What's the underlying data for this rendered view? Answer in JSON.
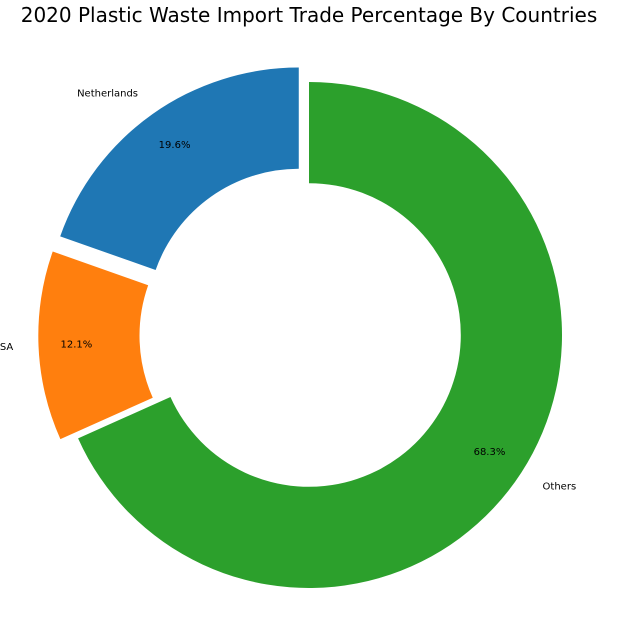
{
  "chart_data": {
    "type": "pie",
    "title": "2020 Plastic Waste Import Trade Percentage By Countries",
    "donut": true,
    "legend": "none",
    "slices": [
      {
        "label": "Netherlands",
        "value": 19.6,
        "pct_label": "19.6%",
        "color": "#1f77b4",
        "exploded": true
      },
      {
        "label": "USA",
        "value": 12.1,
        "pct_label": "12.1%",
        "color": "#ff7f0e",
        "exploded": true
      },
      {
        "label": "Others",
        "value": 68.3,
        "pct_label": "68.3%",
        "color": "#2ca02c",
        "exploded": false
      }
    ]
  }
}
